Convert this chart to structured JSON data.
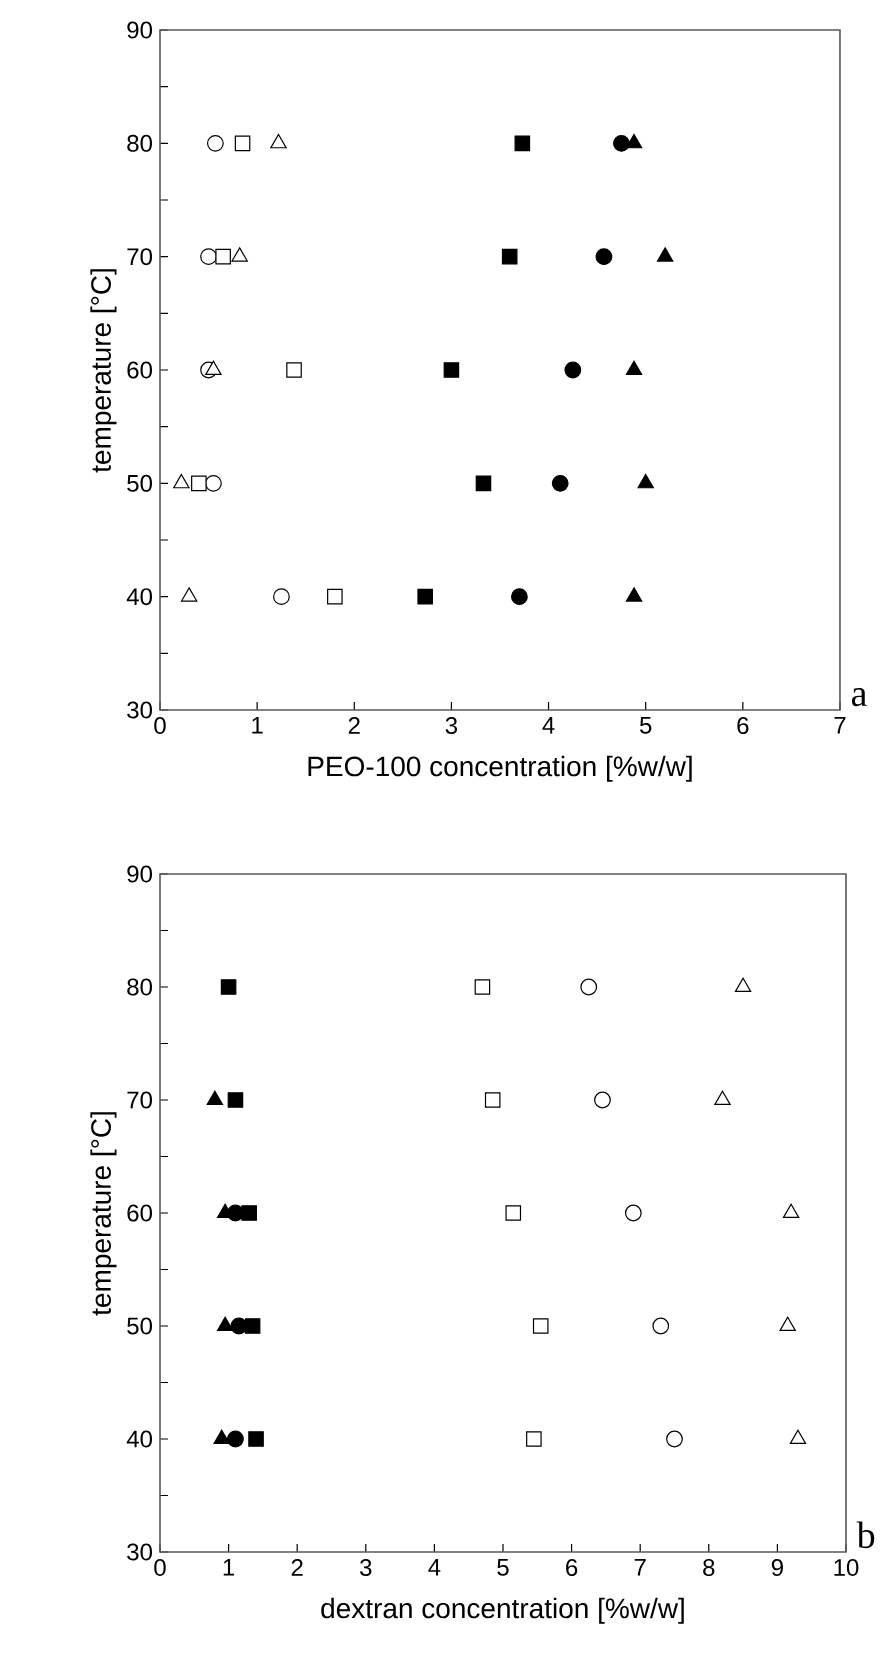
{
  "chart_data": [
    {
      "type": "scatter",
      "xlabel": "PEO-100 concentration [%w/w]",
      "ylabel": "temperature [°C]",
      "annotations": [
        "a"
      ],
      "xlim": [
        0,
        7
      ],
      "xticks": [
        0,
        1,
        2,
        3,
        4,
        5,
        6,
        7
      ],
      "ylim": [
        30,
        90
      ],
      "yticks": [
        30,
        {
          "value": 35,
          "label": null
        },
        40,
        {
          "value": 45,
          "label": null
        },
        50,
        {
          "value": 55,
          "label": null
        },
        60,
        {
          "value": 65,
          "label": null
        },
        70,
        {
          "value": 75,
          "label": null
        },
        80,
        {
          "value": 85,
          "label": null
        },
        90
      ],
      "series": [
        {
          "marker": "circle",
          "color": "#ffffff",
          "x": [
            0.57,
            0.5,
            0.5,
            0.55,
            1.25
          ],
          "values": [
            80,
            70,
            60,
            50,
            40
          ]
        },
        {
          "marker": "square",
          "color": "#ffffff",
          "x": [
            0.85,
            0.65,
            1.38,
            0.4,
            1.8
          ],
          "values": [
            80,
            70,
            60,
            50,
            40
          ]
        },
        {
          "marker": "triangle",
          "color": "#ffffff",
          "x": [
            1.22,
            0.82,
            0.55,
            0.22,
            0.3
          ],
          "values": [
            80,
            70,
            60,
            50,
            40
          ]
        },
        {
          "marker": "square",
          "color": "#000000",
          "x": [
            3.73,
            3.6,
            3.0,
            3.33,
            2.73
          ],
          "values": [
            80,
            70,
            60,
            50,
            40
          ]
        },
        {
          "marker": "circle",
          "color": "#000000",
          "x": [
            4.75,
            4.57,
            4.25,
            4.12,
            3.7
          ],
          "values": [
            80,
            70,
            60,
            50,
            40
          ]
        },
        {
          "marker": "triangle",
          "color": "#000000",
          "x": [
            4.88,
            5.2,
            4.88,
            5.0,
            4.88
          ],
          "values": [
            80,
            70,
            60,
            50,
            40
          ]
        }
      ]
    },
    {
      "type": "scatter",
      "xlabel": "dextran concentration [%w/w]",
      "ylabel": "temperature [°C]",
      "annotations": [
        "b"
      ],
      "xlim": [
        0,
        10
      ],
      "xticks": [
        0,
        1,
        2,
        3,
        4,
        5,
        6,
        7,
        8,
        9,
        10
      ],
      "ylim": [
        30,
        90
      ],
      "yticks": [
        30,
        {
          "value": 35,
          "label": null
        },
        40,
        {
          "value": 45,
          "label": null
        },
        50,
        {
          "value": 55,
          "label": null
        },
        60,
        {
          "value": 65,
          "label": null
        },
        70,
        {
          "value": 75,
          "label": null
        },
        80,
        {
          "value": 85,
          "label": null
        },
        90
      ],
      "series": [
        {
          "marker": "square",
          "color": "#ffffff",
          "x": [
            4.7,
            4.85,
            5.15,
            5.55,
            5.45
          ],
          "values": [
            80,
            70,
            60,
            50,
            40
          ]
        },
        {
          "marker": "circle",
          "color": "#ffffff",
          "x": [
            6.25,
            6.45,
            6.9,
            7.3,
            7.5
          ],
          "values": [
            80,
            70,
            60,
            50,
            40
          ]
        },
        {
          "marker": "triangle",
          "color": "#ffffff",
          "x": [
            8.5,
            8.2,
            9.2,
            9.15,
            9.3
          ],
          "values": [
            80,
            70,
            60,
            50,
            40
          ]
        },
        {
          "marker": "triangle",
          "color": "#000000",
          "x": [
            null,
            0.8,
            0.95,
            0.95,
            0.9
          ],
          "values": [
            null,
            70,
            60,
            50,
            40
          ]
        },
        {
          "marker": "circle",
          "color": "#000000",
          "x": [
            null,
            null,
            1.1,
            1.15,
            1.1
          ],
          "values": [
            null,
            null,
            60,
            50,
            40
          ]
        },
        {
          "marker": "square",
          "color": "#000000",
          "x": [
            1.0,
            1.1,
            1.3,
            1.35,
            1.4
          ],
          "values": [
            80,
            70,
            60,
            50,
            40
          ]
        }
      ]
    }
  ]
}
